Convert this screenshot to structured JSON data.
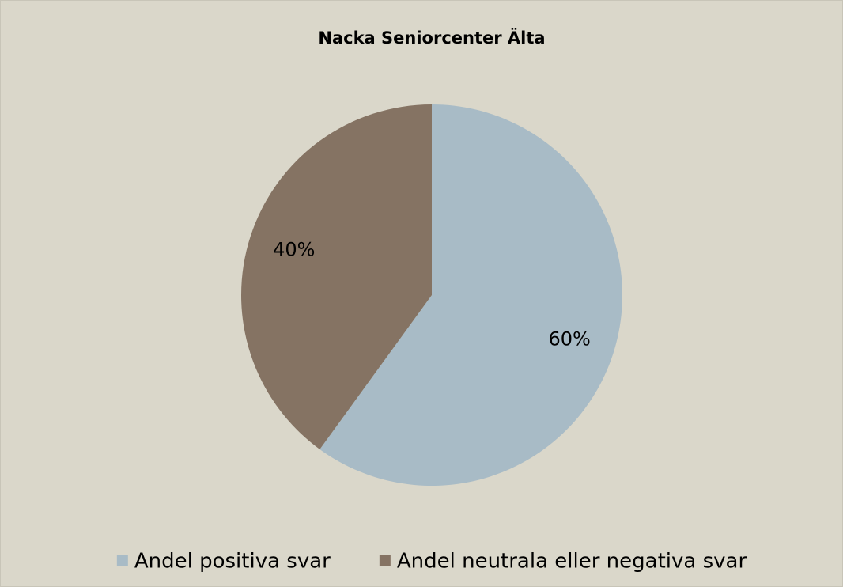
{
  "chart_data": {
    "type": "pie",
    "title": "Nacka Seniorcenter Älta",
    "categories": [
      "Andel positiva svar",
      "Andel neutrala eller negativa svar"
    ],
    "values": [
      60,
      40
    ],
    "value_labels": [
      "60%",
      "40%"
    ],
    "colors": [
      "#a8bbc6",
      "#857363"
    ],
    "legend": "bottom"
  }
}
